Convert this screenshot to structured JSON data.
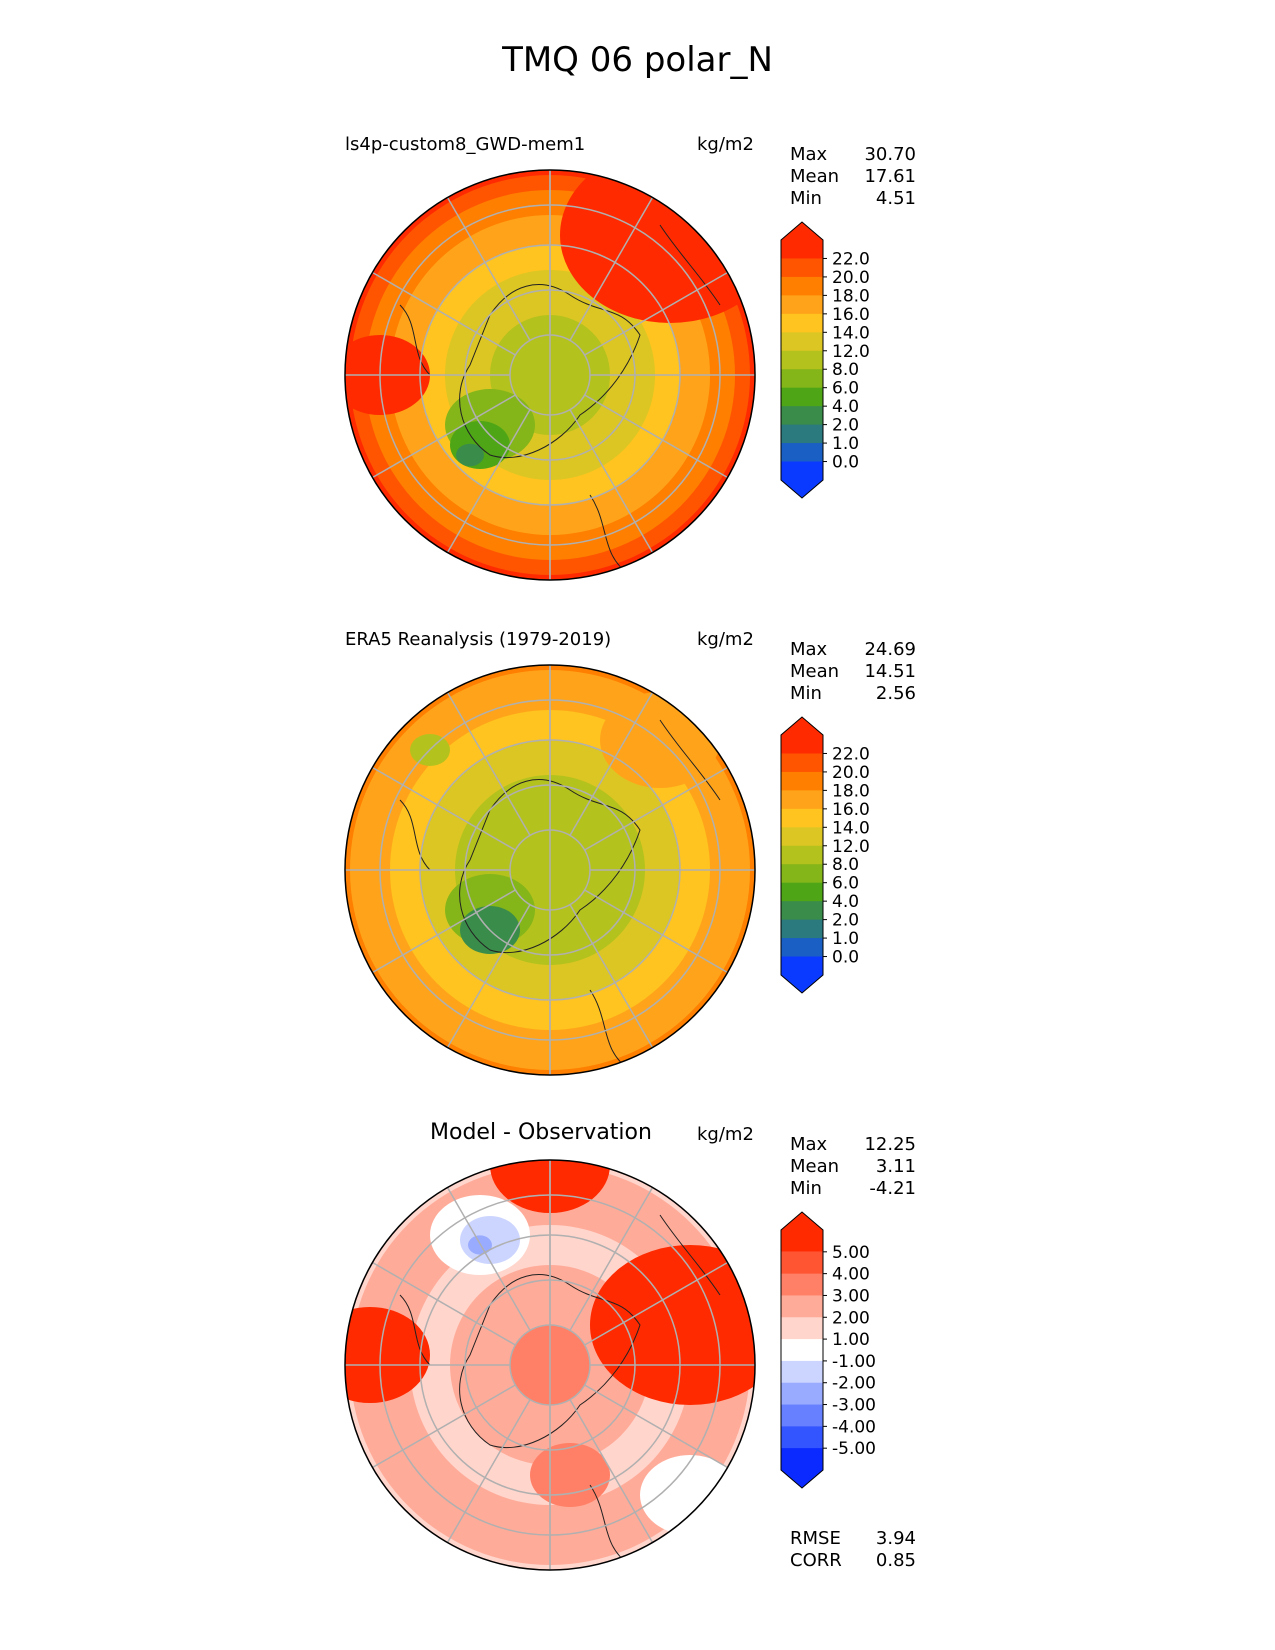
{
  "figure_title": "TMQ 06 polar_N",
  "panels": [
    {
      "id": "model",
      "title": "ls4p-custom8_GWD-mem1",
      "units": "kg/m2",
      "stats": {
        "max_label": "Max",
        "max": "30.70",
        "mean_label": "Mean",
        "mean": "17.61",
        "min_label": "Min",
        "min": "4.51"
      },
      "colorbar": {
        "labels": [
          "22.0",
          "20.0",
          "18.0",
          "16.0",
          "14.0",
          "12.0",
          "8.0",
          "6.0",
          "4.0",
          "2.0",
          "1.0",
          "0.0"
        ],
        "colors": [
          "#ff2a00",
          "#ff5500",
          "#ff7f00",
          "#ffa41a",
          "#ffc41f",
          "#dcc623",
          "#b4c21e",
          "#84b619",
          "#4ea616",
          "#3a8c4a",
          "#2a7a7e",
          "#1a5fc4",
          "#0a3aff"
        ]
      }
    },
    {
      "id": "obs",
      "title": "ERA5 Reanalysis (1979-2019)",
      "units": "kg/m2",
      "stats": {
        "max_label": "Max",
        "max": "24.69",
        "mean_label": "Mean",
        "mean": "14.51",
        "min_label": "Min",
        "min": "2.56"
      },
      "colorbar": {
        "labels": [
          "22.0",
          "20.0",
          "18.0",
          "16.0",
          "14.0",
          "12.0",
          "8.0",
          "6.0",
          "4.0",
          "2.0",
          "1.0",
          "0.0"
        ],
        "colors": [
          "#ff2a00",
          "#ff5500",
          "#ff7f00",
          "#ffa41a",
          "#ffc41f",
          "#dcc623",
          "#b4c21e",
          "#84b619",
          "#4ea616",
          "#3a8c4a",
          "#2a7a7e",
          "#1a5fc4",
          "#0a3aff"
        ]
      }
    },
    {
      "id": "diff",
      "title": "Model - Observation",
      "units": "kg/m2",
      "stats": {
        "max_label": "Max",
        "max": "12.25",
        "mean_label": "Mean",
        "mean": "3.11",
        "min_label": "Min",
        "min": "-4.21"
      },
      "colorbar": {
        "labels": [
          "5.00",
          "4.00",
          "3.00",
          "2.00",
          "1.00",
          "-1.00",
          "-2.00",
          "-3.00",
          "-4.00",
          "-5.00"
        ],
        "colors": [
          "#ff2a00",
          "#ff5533",
          "#ff8066",
          "#ffab99",
          "#ffd5cc",
          "#ffffff",
          "#ccd5ff",
          "#99abff",
          "#6680ff",
          "#3355ff",
          "#0a2aff"
        ]
      },
      "metrics": {
        "rmse_label": "RMSE",
        "rmse": "3.94",
        "corr_label": "CORR",
        "corr": "0.85"
      }
    }
  ]
}
